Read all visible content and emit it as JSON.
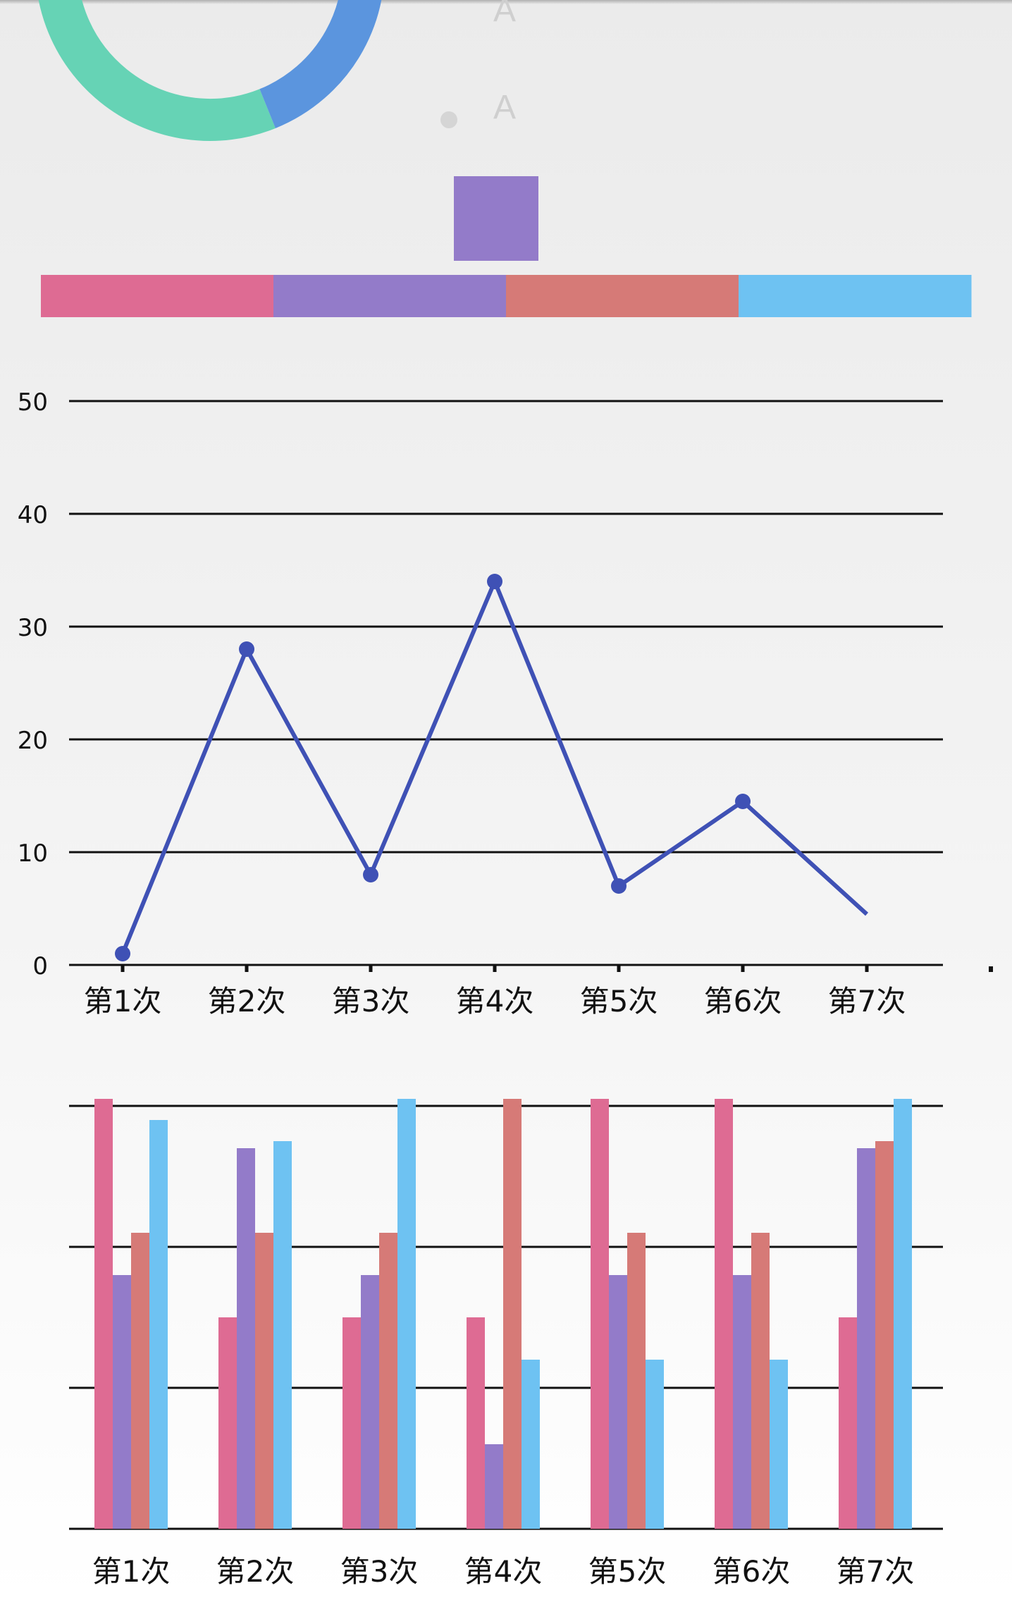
{
  "colors": {
    "pink": "#de6b93",
    "purple": "#937bc9",
    "salmon": "#d67a77",
    "light_blue": "#6ec2f2",
    "teal": "#66d3b5",
    "blue": "#5b95de",
    "line_series": "#3f51b5",
    "legend_dot": "#d5d5d5",
    "legend_text": "#cfcfcf"
  },
  "donut": {
    "segments": [
      {
        "color_key": "teal"
      },
      {
        "color_key": "blue"
      }
    ]
  },
  "legend": {
    "items": [
      {
        "label": "A"
      },
      {
        "label": "A"
      }
    ]
  },
  "color_blocks": [
    "pink",
    "purple",
    "salmon",
    "light_blue"
  ],
  "chart_data": [
    {
      "type": "line",
      "categories": [
        "第1次",
        "第2次",
        "第3次",
        "第4次",
        "第5次",
        "第6次",
        "第7次"
      ],
      "series": [
        {
          "values": [
            1,
            28,
            8,
            34,
            7,
            14.5,
            4.5
          ],
          "color_key": "line_series"
        }
      ],
      "yticks": [
        "0",
        "10",
        "20",
        "30",
        "40",
        "50"
      ],
      "ylim": [
        0,
        50
      ],
      "grid": true
    },
    {
      "type": "bar",
      "categories": [
        "第1次",
        "第2次",
        "第3次",
        "第4次",
        "第5次",
        "第6次",
        "第7次"
      ],
      "series": [
        {
          "color_key": "pink",
          "values": [
            3.05,
            1.5,
            1.5,
            1.5,
            3.05,
            3.05,
            1.5
          ]
        },
        {
          "color_key": "purple",
          "values": [
            1.8,
            2.7,
            1.8,
            0.6,
            1.8,
            1.8,
            2.7
          ]
        },
        {
          "color_key": "salmon",
          "values": [
            2.1,
            2.1,
            2.1,
            3.05,
            2.1,
            2.1,
            2.75
          ]
        },
        {
          "color_key": "light_blue",
          "values": [
            2.9,
            2.75,
            3.05,
            1.2,
            1.2,
            1.2,
            3.05
          ]
        }
      ],
      "ylim": [
        0,
        3
      ],
      "yticks": [],
      "grid": true
    }
  ]
}
